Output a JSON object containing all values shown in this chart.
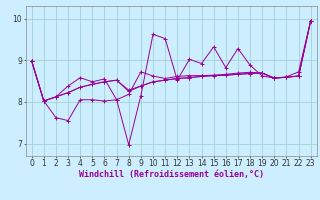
{
  "x": [
    0,
    1,
    2,
    3,
    4,
    5,
    6,
    7,
    8,
    9,
    10,
    11,
    12,
    13,
    14,
    15,
    16,
    17,
    18,
    19,
    20,
    21,
    22,
    23
  ],
  "line_volatile": [
    8.98,
    8.02,
    7.62,
    7.55,
    8.05,
    8.05,
    8.02,
    8.05,
    6.97,
    8.15,
    9.62,
    9.52,
    8.52,
    9.02,
    8.92,
    9.32,
    8.82,
    9.28,
    8.88,
    8.62,
    8.57,
    8.6,
    8.72,
    9.95
  ],
  "line_trend1": [
    8.98,
    8.02,
    8.12,
    8.22,
    8.35,
    8.42,
    8.48,
    8.52,
    8.25,
    8.38,
    8.48,
    8.52,
    8.56,
    8.58,
    8.61,
    8.63,
    8.64,
    8.66,
    8.68,
    8.69,
    8.57,
    8.59,
    8.62,
    9.95
  ],
  "line_trend2": [
    8.98,
    8.02,
    8.12,
    8.38,
    8.58,
    8.48,
    8.55,
    8.05,
    8.18,
    8.72,
    8.62,
    8.56,
    8.61,
    8.63,
    8.63,
    8.64,
    8.66,
    8.69,
    8.71,
    8.69,
    8.57,
    8.59,
    8.62,
    9.95
  ],
  "line_trend3": [
    8.98,
    8.02,
    8.12,
    8.22,
    8.35,
    8.42,
    8.48,
    8.52,
    8.28,
    8.38,
    8.48,
    8.52,
    8.56,
    8.58,
    8.61,
    8.63,
    8.64,
    8.66,
    8.68,
    8.69,
    8.57,
    8.59,
    8.62,
    9.95
  ],
  "line_color": "#990099",
  "bg_color": "#cceeff",
  "grid_color": "#99cccc",
  "xlabel": "Windchill (Refroidissement éolien,°C)",
  "ylim": [
    6.7,
    10.3
  ],
  "xlim": [
    -0.5,
    23.5
  ],
  "yticks": [
    7,
    8,
    9,
    10
  ],
  "xticks": [
    0,
    1,
    2,
    3,
    4,
    5,
    6,
    7,
    8,
    9,
    10,
    11,
    12,
    13,
    14,
    15,
    16,
    17,
    18,
    19,
    20,
    21,
    22,
    23
  ],
  "label_fontsize": 6.0,
  "tick_fontsize": 5.5
}
